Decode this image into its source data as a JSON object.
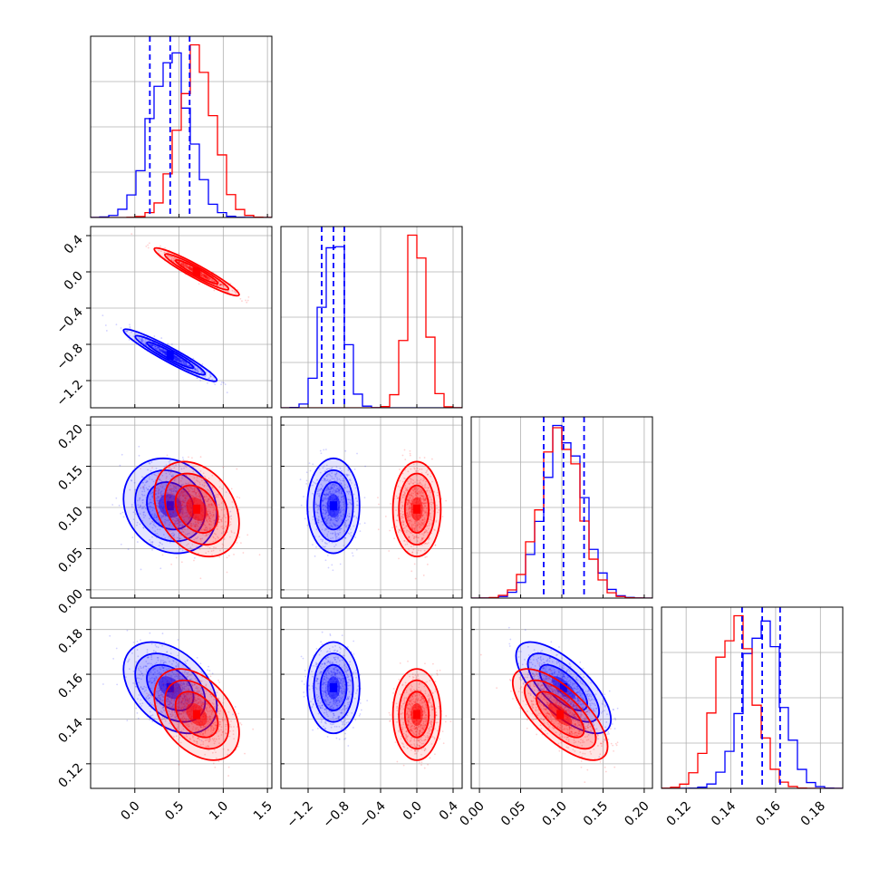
{
  "chart_data": {
    "type": "corner",
    "title": "",
    "params": [
      {
        "range": [
          -0.5,
          1.55
        ],
        "ticks": [
          "0.0",
          "0.5",
          "1.0",
          "1.5"
        ],
        "tick_values": [
          0.0,
          0.5,
          1.0,
          1.5
        ]
      },
      {
        "range": [
          -1.5,
          0.5
        ],
        "ticks": [
          "−1.2",
          "−0.8",
          "−0.4",
          "0.0",
          "0.4"
        ],
        "tick_values": [
          -1.2,
          -0.8,
          -0.4,
          0.0,
          0.4
        ]
      },
      {
        "range": [
          -0.01,
          0.21
        ],
        "ticks": [
          "0.00",
          "0.05",
          "0.10",
          "0.15",
          "0.20"
        ],
        "tick_values": [
          0.0,
          0.05,
          0.1,
          0.15,
          0.2
        ]
      },
      {
        "range": [
          0.109,
          0.19
        ],
        "ticks": [
          "0.12",
          "0.14",
          "0.16",
          "0.18"
        ],
        "tick_values": [
          0.12,
          0.14,
          0.16,
          0.18
        ]
      }
    ],
    "y_ticks": [
      null,
      {
        "ticks": [
          "0.4",
          "0.0",
          "−0.4",
          "−0.8",
          "−1.2"
        ],
        "tick_values": [
          0.4,
          0.0,
          -0.4,
          -0.8,
          -1.2
        ]
      },
      {
        "ticks": [
          "0.20",
          "0.15",
          "0.10",
          "0.05",
          "0.00"
        ],
        "tick_values": [
          0.2,
          0.15,
          0.1,
          0.05,
          0.0
        ]
      },
      {
        "ticks": [
          "0.18",
          "0.16",
          "0.14",
          "0.12"
        ],
        "tick_values": [
          0.18,
          0.16,
          0.14,
          0.12
        ]
      }
    ],
    "series": [
      {
        "color": "#0000ff",
        "mean": [
          0.4,
          -0.92,
          0.102,
          0.154
        ],
        "std": [
          0.22,
          0.12,
          0.024,
          0.0085
        ],
        "quantiles": [
          [
            0.17,
            0.4,
            0.62
          ],
          [
            -1.05,
            -0.92,
            -0.8
          ],
          [
            0.078,
            0.102,
            0.127
          ],
          [
            0.145,
            0.154,
            0.162
          ]
        ]
      },
      {
        "color": "#ff0000",
        "mean": [
          0.7,
          0.0,
          0.098,
          0.142
        ],
        "std": [
          0.2,
          0.11,
          0.024,
          0.0085
        ]
      }
    ],
    "correlations": [
      {
        "pair": [
          0,
          1
        ],
        "blue": -0.95,
        "red": -0.95
      },
      {
        "pair": [
          0,
          2
        ],
        "blue": -0.15,
        "red": -0.3
      },
      {
        "pair": [
          0,
          3
        ],
        "blue": -0.4,
        "red": -0.4
      },
      {
        "pair": [
          1,
          2
        ],
        "blue": 0.0,
        "red": 0.0
      },
      {
        "pair": [
          1,
          3
        ],
        "blue": 0.0,
        "red": 0.0
      },
      {
        "pair": [
          2,
          3
        ],
        "blue": -0.7,
        "red": -0.7
      }
    ],
    "grid": true,
    "legend": "none"
  }
}
